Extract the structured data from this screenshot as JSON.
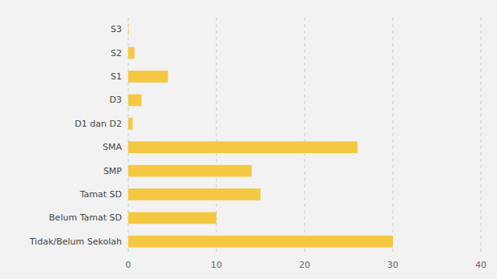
{
  "chart_data": {
    "type": "bar",
    "orientation": "horizontal",
    "categories": [
      "Tidak/Belum Sekolah",
      "Belum Tamat SD",
      "Tamat SD",
      "SMP",
      "SMA",
      "D1 dan D2",
      "D3",
      "S1",
      "S2",
      "S3"
    ],
    "values": [
      30.0,
      10.0,
      15.0,
      14.0,
      26.0,
      0.5,
      1.5,
      4.5,
      0.7,
      0.05
    ],
    "color": "#F5C842",
    "xlim": [
      0,
      40
    ],
    "xticks": [
      0,
      10,
      20,
      30,
      40
    ],
    "grid": true
  }
}
